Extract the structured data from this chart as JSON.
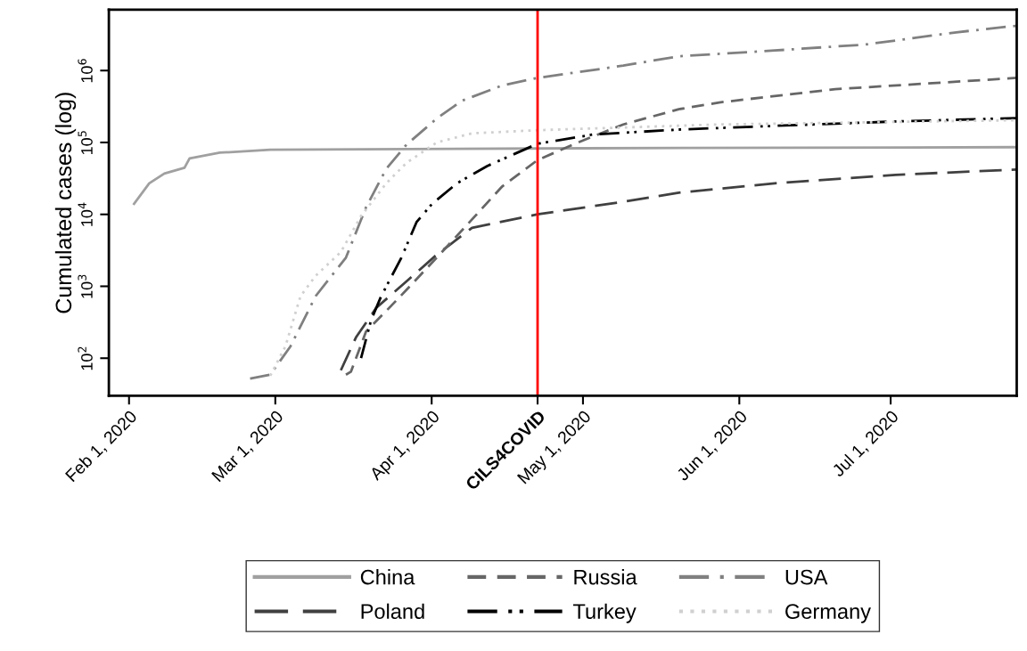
{
  "chart_data": {
    "type": "line",
    "ylabel": "Cumulated cases (log)",
    "log": "y",
    "grid": false,
    "legend": "bottom",
    "xlim": [
      "2020-01-28",
      "2020-07-26"
    ],
    "xticks": [
      {
        "value": "2020-02-01",
        "label": "Feb 1, 2020"
      },
      {
        "value": "2020-03-01",
        "label": "Mar 1, 2020"
      },
      {
        "value": "2020-04-01",
        "label": "Apr 1, 2020"
      },
      {
        "value": "2020-04-22",
        "label": "CILS4COVID"
      },
      {
        "value": "2020-05-01",
        "label": "May 1, 2020"
      },
      {
        "value": "2020-06-01",
        "label": "Jun 1, 2020"
      },
      {
        "value": "2020-07-01",
        "label": "Jul 1, 2020"
      }
    ],
    "ylim": [
      30,
      7000000
    ],
    "yticks": [
      {
        "value": 100,
        "label": "10$^{2}$"
      },
      {
        "value": 1000,
        "label": "10$^{3}$"
      },
      {
        "value": 10000,
        "label": "10$^{4}$"
      },
      {
        "value": 100000,
        "label": "10$^{5}$"
      },
      {
        "value": 1000000,
        "label": "10$^{6}$"
      }
    ],
    "ref_lines": [
      {
        "axis": "x",
        "value": "2020-04-22",
        "color": "#ff0000"
      }
    ],
    "series": [
      {
        "name": "China",
        "color": "#a0a0a0",
        "line_style": "solid",
        "x": [
          "2020-02-02",
          "2020-02-05",
          "2020-02-08",
          "2020-02-12",
          "2020-02-13",
          "2020-02-19",
          "2020-02-29",
          "2020-05-01",
          "2020-07-26"
        ],
        "values": [
          14000,
          27000,
          37000,
          44500,
          60000,
          72000,
          79000,
          83000,
          86000
        ]
      },
      {
        "name": "Poland",
        "color": "#404040",
        "line_style": "longdash",
        "x": [
          "2020-03-14",
          "2020-03-17",
          "2020-03-21",
          "2020-03-27",
          "2020-04-02",
          "2020-04-09",
          "2020-04-22",
          "2020-05-09",
          "2020-05-20",
          "2020-06-08",
          "2020-07-02",
          "2020-07-26"
        ],
        "values": [
          68,
          195,
          500,
          1170,
          2750,
          6500,
          10000,
          15000,
          20000,
          27000,
          35500,
          42000
        ]
      },
      {
        "name": "Russia",
        "color": "#666666",
        "line_style": "dashed",
        "x": [
          "2020-03-15",
          "2020-03-16",
          "2020-03-19",
          "2020-03-23",
          "2020-03-27",
          "2020-04-02",
          "2020-04-09",
          "2020-04-15",
          "2020-04-22",
          "2020-04-30",
          "2020-05-09",
          "2020-05-20",
          "2020-05-28",
          "2020-06-20",
          "2020-07-26"
        ],
        "values": [
          59,
          65,
          236,
          455,
          890,
          2500,
          8500,
          24500,
          57000,
          100000,
          178000,
          290000,
          360000,
          550000,
          790000
        ]
      },
      {
        "name": "Turkey",
        "color": "#000000",
        "line_style": "dashdotdot",
        "x": [
          "2020-03-18",
          "2020-03-20",
          "2020-03-22",
          "2020-03-26",
          "2020-03-29",
          "2020-04-01",
          "2020-04-06",
          "2020-04-12",
          "2020-04-22",
          "2020-05-03",
          "2020-05-20",
          "2020-06-08",
          "2020-07-02",
          "2020-07-26"
        ],
        "values": [
          100,
          340,
          730,
          2500,
          7800,
          13800,
          27000,
          47000,
          96000,
          129000,
          151000,
          170000,
          196000,
          218000
        ]
      },
      {
        "name": "USA",
        "color": "#808080",
        "line_style": "dashdot",
        "x": [
          "2020-02-25",
          "2020-02-29",
          "2020-03-04",
          "2020-03-09",
          "2020-03-15",
          "2020-03-19",
          "2020-03-23",
          "2020-03-27",
          "2020-04-02",
          "2020-04-07",
          "2020-04-15",
          "2020-04-22",
          "2020-05-09",
          "2020-05-20",
          "2020-06-08",
          "2020-06-26",
          "2020-07-14",
          "2020-07-26"
        ],
        "values": [
          52,
          59,
          146,
          730,
          2500,
          12600,
          43000,
          93000,
          215000,
          380000,
          620000,
          790000,
          1170000,
          1580000,
          1900000,
          2300000,
          3400000,
          4200000
        ]
      },
      {
        "name": "Germany",
        "color": "#d0d0d0",
        "line_style": "dotted",
        "x": [
          "2020-02-29",
          "2020-03-03",
          "2020-03-06",
          "2020-03-09",
          "2020-03-14",
          "2020-03-18",
          "2020-03-23",
          "2020-03-27",
          "2020-04-02",
          "2020-04-09",
          "2020-04-22",
          "2020-05-28",
          "2020-07-26"
        ],
        "values": [
          57,
          146,
          730,
          1400,
          3000,
          9500,
          27000,
          52000,
          100000,
          134000,
          148000,
          178000,
          204000
        ]
      }
    ]
  }
}
